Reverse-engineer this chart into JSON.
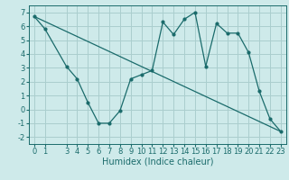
{
  "xlabel": "Humidex (Indice chaleur)",
  "background_color": "#ceeaea",
  "grid_color": "#aacece",
  "line_color": "#1a6b6b",
  "curve1_x": [
    0,
    1,
    3,
    4,
    5,
    6,
    7,
    8,
    9,
    10,
    11,
    12,
    13,
    14,
    15,
    16,
    17,
    18,
    19,
    20,
    21,
    22,
    23
  ],
  "curve1_y": [
    6.7,
    5.8,
    3.1,
    2.2,
    0.5,
    -1.0,
    -1.0,
    -0.1,
    2.2,
    2.5,
    2.8,
    6.3,
    5.4,
    6.5,
    7.0,
    3.1,
    6.2,
    5.5,
    5.5,
    4.1,
    1.3,
    -0.7,
    -1.6
  ],
  "curve2_x": [
    0,
    23
  ],
  "curve2_y": [
    6.7,
    -1.6
  ],
  "ylim": [
    -2.5,
    7.5
  ],
  "xlim": [
    -0.5,
    23.5
  ],
  "yticks": [
    -2,
    -1,
    0,
    1,
    2,
    3,
    4,
    5,
    6,
    7
  ],
  "xticks": [
    0,
    1,
    3,
    4,
    5,
    6,
    7,
    8,
    9,
    10,
    11,
    12,
    13,
    14,
    15,
    16,
    17,
    18,
    19,
    20,
    21,
    22,
    23
  ],
  "xlabel_fontsize": 7,
  "tick_fontsize": 6
}
